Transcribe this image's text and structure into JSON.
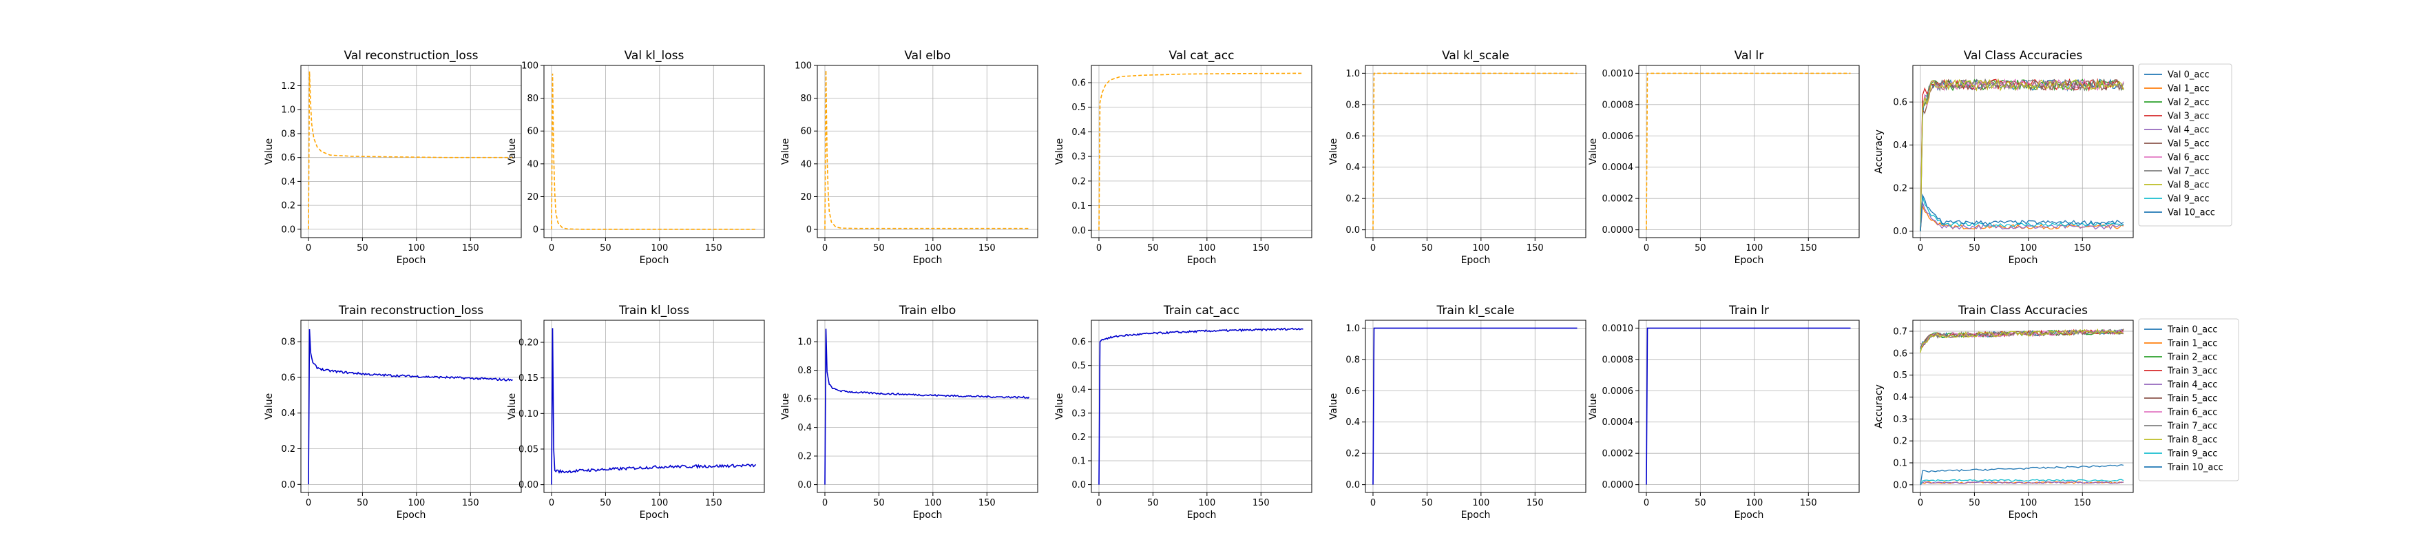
{
  "colors": {
    "val_line": "#ffa500",
    "train_line": "#0000cd",
    "cycle": [
      "#1f77b4",
      "#ff7f0e",
      "#2ca02c",
      "#d62728",
      "#9467bd",
      "#8c564b",
      "#e377c2",
      "#7f7f7f",
      "#bcbd22",
      "#17becf",
      "#1f77b4"
    ]
  },
  "chart_data": [
    {
      "id": "val_reconstruction_loss",
      "type": "line",
      "title": "Val reconstruction_loss",
      "xlabel": "Epoch",
      "ylabel": "Value",
      "style": "dashed",
      "color": "#ffa500",
      "xlim": [
        -7,
        197
      ],
      "ylim": [
        -0.07,
        1.37
      ],
      "xticks": [
        0,
        50,
        100,
        150
      ],
      "yticks": [
        0.0,
        0.2,
        0.4,
        0.6,
        0.8,
        1.0,
        1.2
      ],
      "ytick_labels": [
        "0.0",
        "0.2",
        "0.4",
        "0.6",
        "0.8",
        "1.0",
        "1.2"
      ],
      "points": [
        [
          0,
          0.0
        ],
        [
          1,
          1.32
        ],
        [
          2,
          1.05
        ],
        [
          3,
          0.88
        ],
        [
          5,
          0.76
        ],
        [
          8,
          0.69
        ],
        [
          12,
          0.65
        ],
        [
          20,
          0.62
        ],
        [
          40,
          0.61
        ],
        [
          80,
          0.605
        ],
        [
          130,
          0.6
        ],
        [
          189,
          0.6
        ]
      ]
    },
    {
      "id": "val_kl_loss",
      "type": "line",
      "title": "Val kl_loss",
      "xlabel": "Epoch",
      "ylabel": "Value",
      "style": "dashed",
      "color": "#ffa500",
      "xlim": [
        -7,
        197
      ],
      "ylim": [
        -5,
        100
      ],
      "xticks": [
        0,
        50,
        100,
        150
      ],
      "yticks": [
        0,
        20,
        40,
        60,
        80,
        100
      ],
      "ytick_labels": [
        "0",
        "20",
        "40",
        "60",
        "80",
        "100"
      ],
      "points": [
        [
          0,
          0
        ],
        [
          1,
          95
        ],
        [
          2,
          45
        ],
        [
          3,
          22
        ],
        [
          4,
          10
        ],
        [
          6,
          4
        ],
        [
          10,
          1
        ],
        [
          15,
          0.3
        ],
        [
          30,
          0.1
        ],
        [
          189,
          0.05
        ]
      ]
    },
    {
      "id": "val_elbo",
      "type": "line",
      "title": "Val elbo",
      "xlabel": "Epoch",
      "ylabel": "Value",
      "style": "dashed",
      "color": "#ffa500",
      "xlim": [
        -7,
        197
      ],
      "ylim": [
        -5,
        100
      ],
      "xticks": [
        0,
        50,
        100,
        150
      ],
      "yticks": [
        0,
        20,
        40,
        60,
        80,
        100
      ],
      "ytick_labels": [
        "0",
        "20",
        "40",
        "60",
        "80",
        "100"
      ],
      "points": [
        [
          0,
          0
        ],
        [
          1,
          97
        ],
        [
          2,
          46
        ],
        [
          3,
          23
        ],
        [
          4,
          11
        ],
        [
          6,
          4.5
        ],
        [
          10,
          1.5
        ],
        [
          15,
          0.8
        ],
        [
          30,
          0.6
        ],
        [
          189,
          0.6
        ]
      ]
    },
    {
      "id": "val_cat_acc",
      "type": "line",
      "title": "Val cat_acc",
      "xlabel": "Epoch",
      "ylabel": "Value",
      "style": "dashed",
      "color": "#ffa500",
      "xlim": [
        -7,
        197
      ],
      "ylim": [
        -0.03,
        0.67
      ],
      "xticks": [
        0,
        50,
        100,
        150
      ],
      "yticks": [
        0.0,
        0.1,
        0.2,
        0.3,
        0.4,
        0.5,
        0.6
      ],
      "ytick_labels": [
        "0.0",
        "0.1",
        "0.2",
        "0.3",
        "0.4",
        "0.5",
        "0.6"
      ],
      "points": [
        [
          0,
          0.0
        ],
        [
          1,
          0.52
        ],
        [
          3,
          0.56
        ],
        [
          6,
          0.59
        ],
        [
          10,
          0.61
        ],
        [
          20,
          0.625
        ],
        [
          40,
          0.63
        ],
        [
          80,
          0.635
        ],
        [
          130,
          0.637
        ],
        [
          189,
          0.638
        ]
      ]
    },
    {
      "id": "val_kl_scale",
      "type": "line",
      "title": "Val kl_scale",
      "xlabel": "Epoch",
      "ylabel": "Value",
      "style": "dashed",
      "color": "#ffa500",
      "xlim": [
        -7,
        197
      ],
      "ylim": [
        -0.05,
        1.05
      ],
      "xticks": [
        0,
        50,
        100,
        150
      ],
      "yticks": [
        0.0,
        0.2,
        0.4,
        0.6,
        0.8,
        1.0
      ],
      "ytick_labels": [
        "0.0",
        "0.2",
        "0.4",
        "0.6",
        "0.8",
        "1.0"
      ],
      "points": [
        [
          0,
          0.0
        ],
        [
          1,
          1.0
        ],
        [
          189,
          1.0
        ]
      ]
    },
    {
      "id": "val_lr",
      "type": "line",
      "title": "Val lr",
      "xlabel": "Epoch",
      "ylabel": "Value",
      "style": "dashed",
      "color": "#ffa500",
      "xlim": [
        -7,
        197
      ],
      "ylim": [
        -5e-05,
        0.00105
      ],
      "xticks": [
        0,
        50,
        100,
        150
      ],
      "yticks": [
        0.0,
        0.0002,
        0.0004,
        0.0006,
        0.0008,
        0.001
      ],
      "ytick_labels": [
        "0.0000",
        "0.0002",
        "0.0004",
        "0.0006",
        "0.0008",
        "0.0010"
      ],
      "points": [
        [
          0,
          0.0
        ],
        [
          1,
          0.001
        ],
        [
          189,
          0.001
        ]
      ]
    },
    {
      "id": "val_class_acc",
      "type": "line",
      "title": "Val Class Accuracies",
      "xlabel": "Epoch",
      "ylabel": "Accuracy",
      "style": "solid",
      "xlim": [
        -7,
        197
      ],
      "ylim": [
        -0.03,
        0.77
      ],
      "xticks": [
        0,
        50,
        100,
        150
      ],
      "yticks": [
        0.0,
        0.2,
        0.4,
        0.6
      ],
      "ytick_labels": [
        "0.0",
        "0.2",
        "0.4",
        "0.6"
      ],
      "legend": [
        "Val 0_acc",
        "Val 1_acc",
        "Val 2_acc",
        "Val 3_acc",
        "Val 4_acc",
        "Val 5_acc",
        "Val 6_acc",
        "Val 7_acc",
        "Val 8_acc",
        "Val 9_acc",
        "Val 10_acc"
      ],
      "legend_loc": "outside-right",
      "series_hint": {
        "high_level": 0.68,
        "high_noise": 0.025,
        "low_level": 0.02,
        "low_noise": 0.01
      }
    },
    {
      "id": "train_reconstruction_loss",
      "type": "line",
      "title": "Train reconstruction_loss",
      "xlabel": "Epoch",
      "ylabel": "Value",
      "style": "solid",
      "color": "#0000cd",
      "xlim": [
        -7,
        197
      ],
      "ylim": [
        -0.045,
        0.92
      ],
      "xticks": [
        0,
        50,
        100,
        150
      ],
      "yticks": [
        0.0,
        0.2,
        0.4,
        0.6,
        0.8
      ],
      "ytick_labels": [
        "0.0",
        "0.2",
        "0.4",
        "0.6",
        "0.8"
      ],
      "points": [
        [
          0,
          0.0
        ],
        [
          1,
          0.87
        ],
        [
          2,
          0.74
        ],
        [
          4,
          0.68
        ],
        [
          8,
          0.655
        ],
        [
          15,
          0.64
        ],
        [
          30,
          0.63
        ],
        [
          60,
          0.615
        ],
        [
          100,
          0.605
        ],
        [
          150,
          0.595
        ],
        [
          189,
          0.585
        ]
      ],
      "noise": 0.006
    },
    {
      "id": "train_kl_loss",
      "type": "line",
      "title": "Train kl_loss",
      "xlabel": "Epoch",
      "ylabel": "Value",
      "style": "solid",
      "color": "#0000cd",
      "xlim": [
        -7,
        197
      ],
      "ylim": [
        -0.011,
        0.231
      ],
      "xticks": [
        0,
        50,
        100,
        150
      ],
      "yticks": [
        0.0,
        0.05,
        0.1,
        0.15,
        0.2
      ],
      "ytick_labels": [
        "0.00",
        "0.05",
        "0.10",
        "0.15",
        "0.20"
      ],
      "points": [
        [
          0,
          0.0
        ],
        [
          1,
          0.22
        ],
        [
          2,
          0.05
        ],
        [
          3,
          0.02
        ],
        [
          10,
          0.018
        ],
        [
          30,
          0.02
        ],
        [
          60,
          0.022
        ],
        [
          100,
          0.025
        ],
        [
          150,
          0.026
        ],
        [
          189,
          0.027
        ]
      ],
      "noise": 0.002
    },
    {
      "id": "train_elbo",
      "type": "line",
      "title": "Train elbo",
      "xlabel": "Epoch",
      "ylabel": "Value",
      "style": "solid",
      "color": "#0000cd",
      "xlim": [
        -7,
        197
      ],
      "ylim": [
        -0.055,
        1.15
      ],
      "xticks": [
        0,
        50,
        100,
        150
      ],
      "yticks": [
        0.0,
        0.2,
        0.4,
        0.6,
        0.8,
        1.0
      ],
      "ytick_labels": [
        "0.0",
        "0.2",
        "0.4",
        "0.6",
        "0.8",
        "1.0"
      ],
      "points": [
        [
          0,
          0.0
        ],
        [
          1,
          1.09
        ],
        [
          2,
          0.79
        ],
        [
          4,
          0.7
        ],
        [
          8,
          0.67
        ],
        [
          15,
          0.655
        ],
        [
          30,
          0.645
        ],
        [
          60,
          0.635
        ],
        [
          100,
          0.625
        ],
        [
          150,
          0.615
        ],
        [
          189,
          0.61
        ]
      ],
      "noise": 0.006
    },
    {
      "id": "train_cat_acc",
      "type": "line",
      "title": "Train cat_acc",
      "xlabel": "Epoch",
      "ylabel": "Value",
      "style": "solid",
      "color": "#0000cd",
      "xlim": [
        -7,
        197
      ],
      "ylim": [
        -0.033,
        0.69
      ],
      "xticks": [
        0,
        50,
        100,
        150
      ],
      "yticks": [
        0.0,
        0.1,
        0.2,
        0.3,
        0.4,
        0.5,
        0.6
      ],
      "ytick_labels": [
        "0.0",
        "0.1",
        "0.2",
        "0.3",
        "0.4",
        "0.5",
        "0.6"
      ],
      "points": [
        [
          0,
          0.0
        ],
        [
          1,
          0.6
        ],
        [
          3,
          0.61
        ],
        [
          8,
          0.615
        ],
        [
          20,
          0.625
        ],
        [
          50,
          0.635
        ],
        [
          100,
          0.645
        ],
        [
          150,
          0.65
        ],
        [
          189,
          0.655
        ]
      ],
      "noise": 0.004
    },
    {
      "id": "train_kl_scale",
      "type": "line",
      "title": "Train kl_scale",
      "xlabel": "Epoch",
      "ylabel": "Value",
      "style": "solid",
      "color": "#0000cd",
      "xlim": [
        -7,
        197
      ],
      "ylim": [
        -0.05,
        1.05
      ],
      "xticks": [
        0,
        50,
        100,
        150
      ],
      "yticks": [
        0.0,
        0.2,
        0.4,
        0.6,
        0.8,
        1.0
      ],
      "ytick_labels": [
        "0.0",
        "0.2",
        "0.4",
        "0.6",
        "0.8",
        "1.0"
      ],
      "points": [
        [
          0,
          0.0
        ],
        [
          1,
          1.0
        ],
        [
          189,
          1.0
        ]
      ]
    },
    {
      "id": "train_lr",
      "type": "line",
      "title": "Train lr",
      "xlabel": "Epoch",
      "ylabel": "Value",
      "style": "solid",
      "color": "#0000cd",
      "xlim": [
        -7,
        197
      ],
      "ylim": [
        -5e-05,
        0.00105
      ],
      "xticks": [
        0,
        50,
        100,
        150
      ],
      "yticks": [
        0.0,
        0.0002,
        0.0004,
        0.0006,
        0.0008,
        0.001
      ],
      "ytick_labels": [
        "0.0000",
        "0.0002",
        "0.0004",
        "0.0006",
        "0.0008",
        "0.0010"
      ],
      "points": [
        [
          0,
          0.0
        ],
        [
          1,
          0.001
        ],
        [
          189,
          0.001
        ]
      ]
    },
    {
      "id": "train_class_acc",
      "type": "line",
      "title": "Train Class Accuracies",
      "xlabel": "Epoch",
      "ylabel": "Accuracy",
      "style": "solid",
      "xlim": [
        -7,
        197
      ],
      "ylim": [
        -0.035,
        0.75
      ],
      "xticks": [
        0,
        50,
        100,
        150
      ],
      "yticks": [
        0.0,
        0.1,
        0.2,
        0.3,
        0.4,
        0.5,
        0.6,
        0.7
      ],
      "ytick_labels": [
        "0.0",
        "0.1",
        "0.2",
        "0.3",
        "0.4",
        "0.5",
        "0.6",
        "0.7"
      ],
      "legend": [
        "Train 0_acc",
        "Train 1_acc",
        "Train 2_acc",
        "Train 3_acc",
        "Train 4_acc",
        "Train 5_acc",
        "Train 6_acc",
        "Train 7_acc",
        "Train 8_acc",
        "Train 9_acc",
        "Train 10_acc"
      ],
      "legend_loc": "outside-right",
      "series_hint": {
        "high_level": 0.68,
        "high_noise": 0.012,
        "low_level": 0.01,
        "low_noise": 0.004
      }
    }
  ]
}
